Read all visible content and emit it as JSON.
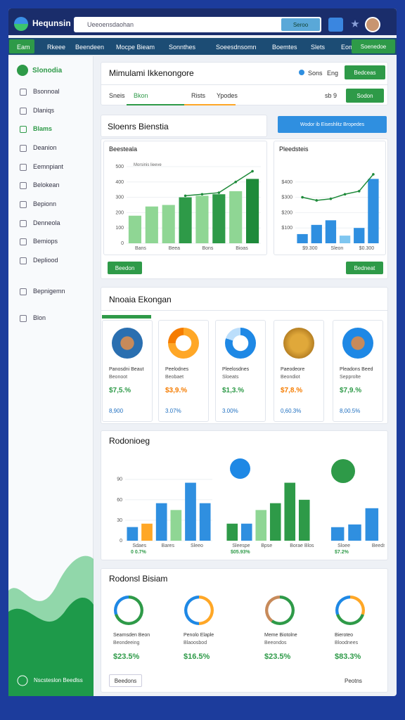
{
  "topbar": {
    "logo": "Hequnsin",
    "search_placeholder": "Ueeoensdaohan",
    "search_button": "Seroo"
  },
  "nav": {
    "items": [
      "Eam",
      "Rkeee",
      "Beendeen",
      "Mocpe Bieam",
      "Sonnthes",
      "Soeesdnsomn",
      "Boemtes",
      "Slets",
      "Eom"
    ],
    "button": "Soenedoe"
  },
  "sidebar": {
    "title": "Slonodia",
    "items": [
      "Bsonnoal",
      "Dlaniqs",
      "Blams",
      "Deanion",
      "Eemnpiant",
      "Belokean",
      "Bepionn",
      "Denneola",
      "Bemiops",
      "Depliood",
      "Bepnigemn",
      "Blon"
    ],
    "footer": "Nscsteslon Beedlss"
  },
  "header_card": {
    "title": "Mimulami Ikkenongore",
    "status": "Sons",
    "lang": "Eng",
    "button": "Bedceas",
    "tabs": [
      "Sneis",
      "Bkon",
      "Rists",
      "Ypodes"
    ],
    "count": "sb 9",
    "action": "Sodon"
  },
  "overview": {
    "title": "Sloenrs Bienstia",
    "dropdown": "Wodor ib Eiseshlitz Bropedes",
    "left_button": "Beedon",
    "right_button": "Bedneat",
    "charts": [
      {
        "type": "bar",
        "title": "Beesteala",
        "subtitle": "Morsinis lieeve",
        "categories": [
          "Bans",
          null,
          "Beea",
          null,
          "Bons",
          null,
          "Bioas",
          null
        ],
        "values": [
          180,
          240,
          250,
          300,
          310,
          320,
          340,
          420
        ],
        "colors": [
          "#8fd694",
          "#8fd694",
          "#8fd694",
          "#2e9a48",
          "#8fd694",
          "#2e9a48",
          "#8fd694",
          "#1e8a3a"
        ],
        "line": [
          null,
          null,
          null,
          310,
          320,
          330,
          400,
          470
        ],
        "line_color": "#1e8a3a",
        "ylim": [
          0,
          500
        ],
        "yticks": [
          0,
          100,
          200,
          300,
          400,
          500
        ]
      },
      {
        "type": "bar",
        "title": "Pleedsteis",
        "categories": [
          "$9.300",
          null,
          "Sleon",
          null,
          "$0.300",
          null
        ],
        "values": [
          60,
          120,
          150,
          50,
          100,
          420
        ],
        "colors": [
          "#2f8fe0",
          "#2f8fe0",
          "#2f8fe0",
          "#7fc6f0",
          "#2f8fe0",
          "#2f8fe0"
        ],
        "line": [
          300,
          280,
          290,
          320,
          340,
          450
        ],
        "line_color": "#1e8a3a",
        "ylim": [
          0,
          500
        ],
        "yticks": [
          {
            "value": 100,
            "label": "$100"
          },
          {
            "value": 200,
            "label": "$200"
          },
          {
            "value": 300,
            "label": "$300"
          },
          {
            "value": 400,
            "label": "$400"
          }
        ]
      }
    ]
  },
  "cards_section": {
    "title": "Nnoaia Ekongan",
    "cards": [
      {
        "name": "Panosdni Beaut",
        "subtitle": "Beonoot",
        "value": "$7,5.%",
        "stat": "8,900"
      },
      {
        "name": "Peelodnes",
        "subtitle": "Beobaet",
        "value": "$3,9.%",
        "stat": "3.07%"
      },
      {
        "name": "Pleelosdnes",
        "subtitle": "Sloeats",
        "value": "$1,3.%",
        "stat": "3.00%"
      },
      {
        "name": "Paeodeore",
        "subtitle": "Beondiot",
        "value": "$7,8.%",
        "stat": "0,60.3%"
      },
      {
        "name": "Pleadons Beed",
        "subtitle": "Sepprolte",
        "value": "$7,9.%",
        "stat": "8,00.5%"
      }
    ]
  },
  "report": {
    "title": "Rodonioeg",
    "charts": [
      {
        "type": "bar",
        "categories": [
          "Sdaes",
          null,
          "Bares",
          null,
          "Sleeo",
          null
        ],
        "note": "0 0.7%",
        "values": [
          20,
          25,
          55,
          45,
          85,
          55
        ],
        "colors": [
          "#2f8fe0",
          "#ffa726",
          "#2f8fe0",
          "#8fd694",
          "#2f8fe0",
          "#2f8fe0"
        ],
        "ylim": [
          0,
          100
        ],
        "yticks": [
          0,
          30,
          60,
          90
        ]
      },
      {
        "type": "bar",
        "categories": [
          "Sleespe",
          null,
          "Bpse",
          null,
          "Borae Blos",
          null
        ],
        "note": "$05.93%",
        "values": [
          25,
          25,
          45,
          55,
          85,
          60
        ],
        "colors": [
          "#2e9a48",
          "#2f8fe0",
          "#8fd694",
          "#2e9a48",
          "#2e9a48",
          "#2e9a48"
        ],
        "ylim": [
          0,
          100
        ],
        "yticks": []
      },
      {
        "type": "bar",
        "categories": [
          "Sloee",
          null,
          "Beedse"
        ],
        "note": "$7.2%",
        "values": [
          25,
          30,
          60
        ],
        "colors": [
          "#2f8fe0",
          "#2f8fe0",
          "#2f8fe0"
        ],
        "ylim": [
          0,
          100
        ],
        "yticks": []
      }
    ]
  },
  "bottom": {
    "title": "Rodonsl Bisiam",
    "items": [
      {
        "name": "Searnsden Beon",
        "subtitle": "Beondeeing",
        "value": "$23.5%"
      },
      {
        "name": "Penolo Elaple",
        "subtitle": "Blaoosbod",
        "value": "$16.5%"
      },
      {
        "name": "Meme Biotolne",
        "subtitle": "Beeondos",
        "value": "$23.5%"
      },
      {
        "name": "Bieroteo",
        "subtitle": "Bloodnees",
        "value": "$83.3%"
      }
    ],
    "button": "Beedons",
    "link": "Peotns"
  }
}
